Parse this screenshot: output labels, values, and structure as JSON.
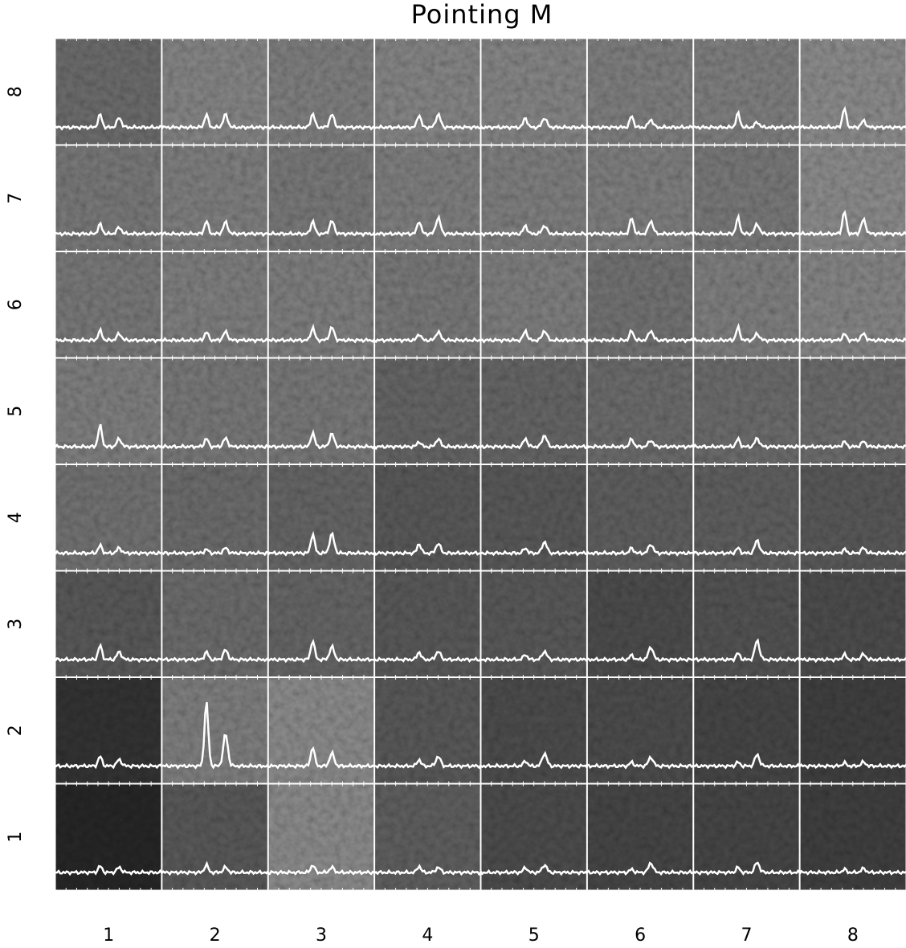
{
  "chart_data": {
    "type": "spectral_grid",
    "title": "Pointing M",
    "columns": [
      "1",
      "2",
      "3",
      "4",
      "5",
      "6",
      "7",
      "8"
    ],
    "rows": [
      "1",
      "2",
      "3",
      "4",
      "5",
      "6",
      "7",
      "8"
    ],
    "line_color": "#ffffff",
    "grid_color": "#ffffff",
    "background": [
      [
        30,
        70,
        110,
        75,
        60,
        55,
        55,
        50
      ],
      [
        40,
        100,
        110,
        70,
        60,
        60,
        55,
        50
      ],
      [
        70,
        85,
        80,
        70,
        70,
        60,
        65,
        60
      ],
      [
        90,
        85,
        80,
        70,
        70,
        75,
        75,
        70
      ],
      [
        100,
        95,
        95,
        80,
        80,
        85,
        85,
        85
      ],
      [
        95,
        100,
        100,
        95,
        100,
        90,
        100,
        105
      ],
      [
        95,
        100,
        95,
        100,
        100,
        100,
        95,
        110
      ],
      [
        85,
        105,
        100,
        105,
        105,
        100,
        100,
        110
      ]
    ],
    "peaks": [
      [
        [
          1,
          0.8
        ],
        [
          1.2,
          0.8
        ],
        [
          1.2,
          0.8
        ],
        [
          1,
          0.8
        ],
        [
          0.8,
          1.2
        ],
        [
          0.5,
          1.5
        ],
        [
          0.8,
          1.6
        ],
        [
          0.5,
          0.6
        ]
      ],
      [
        [
          1.5,
          1
        ],
        [
          10,
          5
        ],
        [
          3,
          2
        ],
        [
          1,
          1.5
        ],
        [
          0.8,
          2
        ],
        [
          0.6,
          1.4
        ],
        [
          0.6,
          1.8
        ],
        [
          0.5,
          0.6
        ]
      ],
      [
        [
          2.2,
          1.2
        ],
        [
          1.2,
          1.5
        ],
        [
          3,
          2
        ],
        [
          1.2,
          1.3
        ],
        [
          0.8,
          1.3
        ],
        [
          0.7,
          2
        ],
        [
          1,
          3
        ],
        [
          0.8,
          0.8
        ]
      ],
      [
        [
          1.2,
          0.8
        ],
        [
          0.6,
          0.8
        ],
        [
          3,
          3
        ],
        [
          1.5,
          1.5
        ],
        [
          0.8,
          1.8
        ],
        [
          0.8,
          1.4
        ],
        [
          0.8,
          2
        ],
        [
          0.6,
          0.8
        ]
      ],
      [
        [
          3.3,
          1.2
        ],
        [
          1.3,
          1.3
        ],
        [
          2.2,
          2
        ],
        [
          0.8,
          1.2
        ],
        [
          1.3,
          1.8
        ],
        [
          1.2,
          1
        ],
        [
          1.2,
          1.3
        ],
        [
          0.8,
          0.8
        ]
      ],
      [
        [
          1.5,
          1
        ],
        [
          1.3,
          1.3
        ],
        [
          2,
          2
        ],
        [
          1,
          1.3
        ],
        [
          1.5,
          1.5
        ],
        [
          1.5,
          1.5
        ],
        [
          2,
          1
        ],
        [
          1,
          1
        ]
      ],
      [
        [
          1.5,
          1
        ],
        [
          2,
          1.8
        ],
        [
          2,
          2
        ],
        [
          2,
          2.5
        ],
        [
          1.3,
          1.3
        ],
        [
          2.5,
          2
        ],
        [
          2.5,
          1.5
        ],
        [
          3.5,
          2.2
        ]
      ],
      [
        [
          2,
          1.5
        ],
        [
          2,
          2
        ],
        [
          2.2,
          2
        ],
        [
          2,
          2
        ],
        [
          1.5,
          1.5
        ],
        [
          1.8,
          1.2
        ],
        [
          2.2,
          0.8
        ],
        [
          3,
          1
        ]
      ]
    ]
  }
}
